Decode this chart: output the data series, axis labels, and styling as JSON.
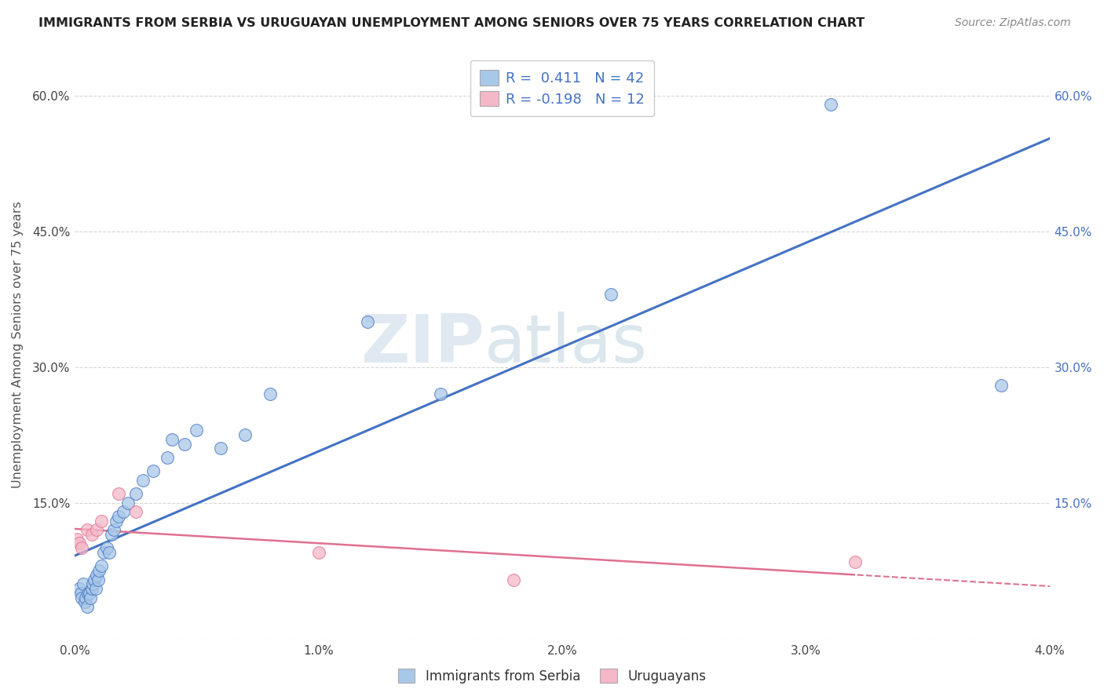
{
  "title": "IMMIGRANTS FROM SERBIA VS URUGUAYAN UNEMPLOYMENT AMONG SENIORS OVER 75 YEARS CORRELATION CHART",
  "source": "Source: ZipAtlas.com",
  "ylabel": "Unemployment Among Seniors over 75 years",
  "xlim": [
    0.0,
    0.04
  ],
  "ylim": [
    0.0,
    0.65
  ],
  "x_ticks": [
    0.0,
    0.01,
    0.02,
    0.03,
    0.04
  ],
  "x_tick_labels": [
    "0.0%",
    "1.0%",
    "2.0%",
    "3.0%",
    "4.0%"
  ],
  "y_ticks": [
    0.0,
    0.15,
    0.3,
    0.45,
    0.6
  ],
  "y_tick_labels_left": [
    "",
    "15.0%",
    "30.0%",
    "45.0%",
    "60.0%"
  ],
  "y_tick_labels_right": [
    "",
    "15.0%",
    "30.0%",
    "45.0%",
    "60.0%"
  ],
  "color_blue": "#a8c8e8",
  "color_pink": "#f4b8c8",
  "line_blue": "#4472c4",
  "line_pink": "#e07090",
  "watermark_zip": "ZIP",
  "watermark_atlas": "atlas",
  "serbia_x": [
    0.0002,
    0.00025,
    0.0003,
    0.00035,
    0.0004,
    0.00045,
    0.0005,
    0.00055,
    0.0006,
    0.00065,
    0.0007,
    0.00075,
    0.0008,
    0.00085,
    0.0009,
    0.00095,
    0.001,
    0.0011,
    0.0012,
    0.0013,
    0.0014,
    0.0015,
    0.0016,
    0.0017,
    0.0018,
    0.002,
    0.0022,
    0.0025,
    0.0028,
    0.0032,
    0.0038,
    0.004,
    0.0045,
    0.005,
    0.006,
    0.007,
    0.008,
    0.012,
    0.015,
    0.022,
    0.031,
    0.038
  ],
  "serbia_y": [
    0.055,
    0.05,
    0.045,
    0.06,
    0.04,
    0.045,
    0.035,
    0.05,
    0.05,
    0.045,
    0.055,
    0.06,
    0.065,
    0.055,
    0.07,
    0.065,
    0.075,
    0.08,
    0.095,
    0.1,
    0.095,
    0.115,
    0.12,
    0.13,
    0.135,
    0.14,
    0.15,
    0.16,
    0.175,
    0.185,
    0.2,
    0.22,
    0.215,
    0.23,
    0.21,
    0.225,
    0.27,
    0.35,
    0.27,
    0.38,
    0.59,
    0.28
  ],
  "uruguay_x": [
    0.0001,
    0.0002,
    0.0003,
    0.0005,
    0.0007,
    0.0009,
    0.0011,
    0.0018,
    0.0025,
    0.01,
    0.018,
    0.032
  ],
  "uruguay_y": [
    0.11,
    0.105,
    0.1,
    0.12,
    0.115,
    0.12,
    0.13,
    0.16,
    0.14,
    0.095,
    0.065,
    0.085
  ]
}
